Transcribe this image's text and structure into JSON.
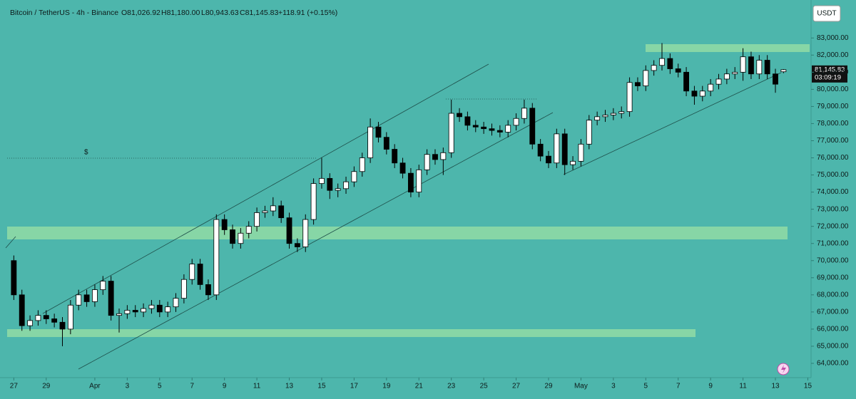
{
  "header": {
    "symbol": "Bitcoin / TetherUS - 4h - Binance",
    "open": "O81,026.92",
    "high": "H81,180.00",
    "low": "L80,943.63",
    "close": "C81,145.83",
    "change": "+118.91 (+0.15%)"
  },
  "currency_button": "USDT",
  "annotation": "$",
  "last_price_label": "81,145.83",
  "countdown": "03:09:19",
  "chart_data": {
    "type": "candlestick",
    "up_color": "#ffffff",
    "down_color": "#000000",
    "x": [
      0,
      0.5,
      1,
      1.5,
      2,
      2.5,
      3,
      3.5,
      4,
      4.5,
      5,
      5.5,
      6,
      6.5,
      7,
      7.5,
      8,
      8.5,
      9,
      9.5,
      10,
      10.5,
      11,
      11.5,
      12,
      12.5,
      13,
      13.5,
      14,
      14.5,
      15,
      15.5,
      16,
      16.5,
      17,
      17.5,
      18,
      18.5,
      19,
      19.5,
      20,
      20.5,
      21,
      21.5,
      22,
      22.5,
      23,
      23.5,
      24,
      24.5,
      25,
      25.5,
      26,
      26.5,
      27,
      27.5,
      28,
      28.5,
      29,
      29.5,
      30,
      30.5,
      31,
      31.5,
      32,
      32.5,
      33,
      33.5,
      34,
      34.5,
      35,
      35.5,
      36,
      36.5,
      37,
      37.5,
      38,
      38.5,
      39,
      39.5,
      40,
      40.5,
      41,
      41.5,
      42,
      42.5,
      43,
      43.5,
      44,
      44.5,
      45,
      45.5,
      46,
      46.5,
      47,
      47.5
    ],
    "open": [
      70000,
      68000,
      66200,
      66500,
      66800,
      66600,
      66400,
      66000,
      67400,
      68000,
      67600,
      68300,
      68800,
      66800,
      66900,
      67100,
      67000,
      67200,
      67400,
      67000,
      67300,
      67800,
      68900,
      69800,
      68600,
      68000,
      72400,
      71800,
      71000,
      71600,
      72000,
      72800,
      72900,
      73200,
      72500,
      71000,
      70800,
      72400,
      74500,
      74800,
      74100,
      74200,
      74600,
      75200,
      76000,
      77800,
      77200,
      76500,
      75700,
      75100,
      74000,
      75300,
      76200,
      75900,
      76300,
      78600,
      78400,
      77900,
      77800,
      77700,
      77600,
      77500,
      77900,
      78300,
      78900,
      76800,
      76100,
      75700,
      77400,
      75600,
      75800,
      76800,
      78200,
      78400,
      78500,
      78600,
      78700,
      80400,
      80200,
      81100,
      81400,
      81800,
      81200,
      81000,
      79900,
      79600,
      79900,
      80300,
      80600,
      80900,
      81000,
      81900,
      80900,
      81700,
      80900,
      81026.92
    ],
    "high": [
      70300,
      68300,
      66800,
      67100,
      67100,
      66900,
      66700,
      67700,
      68300,
      68300,
      68600,
      69100,
      69100,
      67200,
      67400,
      67400,
      67500,
      67700,
      67700,
      67600,
      68100,
      69200,
      70100,
      70100,
      68900,
      72700,
      72700,
      72100,
      71900,
      72300,
      73100,
      73200,
      73700,
      73500,
      72800,
      71300,
      72700,
      74800,
      76000,
      75100,
      74500,
      74900,
      75500,
      76300,
      78300,
      78100,
      77500,
      76800,
      76000,
      75400,
      75600,
      76500,
      76500,
      76600,
      79400,
      78900,
      78700,
      78200,
      78100,
      78000,
      77900,
      78200,
      78600,
      79400,
      79200,
      77100,
      76400,
      77700,
      77700,
      76100,
      77100,
      78500,
      78700,
      78800,
      78900,
      79000,
      80700,
      80700,
      81400,
      81700,
      82700,
      82100,
      81500,
      81300,
      80200,
      80200,
      80600,
      80900,
      81200,
      81300,
      82400,
      82200,
      82000,
      82000,
      81200,
      81180
    ],
    "low": [
      67700,
      65900,
      65900,
      66200,
      66300,
      66100,
      65000,
      65700,
      67100,
      67300,
      67300,
      68000,
      66500,
      65800,
      66600,
      66700,
      66700,
      66900,
      66700,
      66700,
      67000,
      67500,
      68600,
      68300,
      67700,
      67700,
      71500,
      70700,
      70700,
      71300,
      71700,
      72500,
      72600,
      72200,
      70700,
      70500,
      70500,
      72100,
      74200,
      73600,
      73700,
      73900,
      74300,
      74900,
      75700,
      76900,
      76200,
      75400,
      74800,
      73700,
      73700,
      75000,
      75600,
      75000,
      76000,
      78100,
      77600,
      77500,
      77400,
      77300,
      77200,
      77200,
      77600,
      78000,
      76500,
      75800,
      75400,
      75400,
      75000,
      75300,
      75500,
      76500,
      77900,
      78100,
      78200,
      78300,
      78400,
      79900,
      79900,
      80800,
      81100,
      80900,
      80700,
      79600,
      79100,
      79300,
      79600,
      80000,
      80300,
      80600,
      80500,
      80600,
      80600,
      80600,
      79800,
      80943.63
    ],
    "close": [
      68000,
      66200,
      66500,
      66800,
      66600,
      66400,
      66000,
      67400,
      68000,
      67600,
      68300,
      68800,
      66800,
      66900,
      67100,
      67000,
      67200,
      67400,
      67000,
      67300,
      67800,
      68900,
      69800,
      68600,
      68000,
      72400,
      71800,
      71000,
      71600,
      72000,
      72800,
      72900,
      73200,
      72500,
      71000,
      70800,
      72400,
      74500,
      74800,
      74100,
      74200,
      74600,
      75200,
      76000,
      77800,
      77200,
      76500,
      75700,
      75100,
      74000,
      75300,
      76200,
      75900,
      76300,
      78600,
      78400,
      77900,
      77800,
      77700,
      77600,
      77500,
      77900,
      78300,
      78900,
      76800,
      76100,
      75700,
      77400,
      75600,
      75800,
      76800,
      78200,
      78400,
      78500,
      78600,
      78700,
      80400,
      80200,
      81100,
      81400,
      81800,
      81200,
      81000,
      79900,
      79600,
      79900,
      80300,
      80600,
      80900,
      81000,
      81900,
      80900,
      81700,
      80900,
      80300,
      81145.83
    ],
    "xlim": [
      -0.5,
      49.2
    ],
    "xticks": [
      {
        "value": 0,
        "label": "27"
      },
      {
        "value": 2,
        "label": "29"
      },
      {
        "value": 5,
        "label": "Apr"
      },
      {
        "value": 7,
        "label": "3"
      },
      {
        "value": 9,
        "label": "5"
      },
      {
        "value": 11,
        "label": "7"
      },
      {
        "value": 13,
        "label": "9"
      },
      {
        "value": 15,
        "label": "11"
      },
      {
        "value": 17,
        "label": "13"
      },
      {
        "value": 19,
        "label": "15"
      },
      {
        "value": 21,
        "label": "17"
      },
      {
        "value": 23,
        "label": "19"
      },
      {
        "value": 25,
        "label": "21"
      },
      {
        "value": 27,
        "label": "23"
      },
      {
        "value": 29,
        "label": "25"
      },
      {
        "value": 31,
        "label": "27"
      },
      {
        "value": 33,
        "label": "29"
      },
      {
        "value": 35,
        "label": "May"
      },
      {
        "value": 37,
        "label": "3"
      },
      {
        "value": 39,
        "label": "5"
      },
      {
        "value": 41,
        "label": "7"
      },
      {
        "value": 43,
        "label": "9"
      },
      {
        "value": 45,
        "label": "11"
      },
      {
        "value": 47,
        "label": "13"
      },
      {
        "value": 49,
        "label": "15"
      }
    ],
    "ylim": [
      63250,
      84800
    ],
    "yticks": [
      {
        "value": 64000,
        "label": "64,000.00"
      },
      {
        "value": 65000,
        "label": "65,000.00"
      },
      {
        "value": 66000,
        "label": "66,000.00"
      },
      {
        "value": 67000,
        "label": "67,000.00"
      },
      {
        "value": 68000,
        "label": "68,000.00"
      },
      {
        "value": 69000,
        "label": "69,000.00"
      },
      {
        "value": 70000,
        "label": "70,000.00"
      },
      {
        "value": 71000,
        "label": "71,000.00"
      },
      {
        "value": 72000,
        "label": "72,000.00"
      },
      {
        "value": 73000,
        "label": "73,000.00"
      },
      {
        "value": 74000,
        "label": "74,000.00"
      },
      {
        "value": 75000,
        "label": "75,000.00"
      },
      {
        "value": 76000,
        "label": "76,000.00"
      },
      {
        "value": 77000,
        "label": "77,000.00"
      },
      {
        "value": 78000,
        "label": "78,000.00"
      },
      {
        "value": 79000,
        "label": "79,000.00"
      },
      {
        "value": 80000,
        "label": "80,000.00"
      },
      {
        "value": 81000,
        "label": "81,000.00"
      },
      {
        "value": 82000,
        "label": "82,000.00"
      },
      {
        "value": 83000,
        "label": "83,000.00"
      }
    ]
  }
}
